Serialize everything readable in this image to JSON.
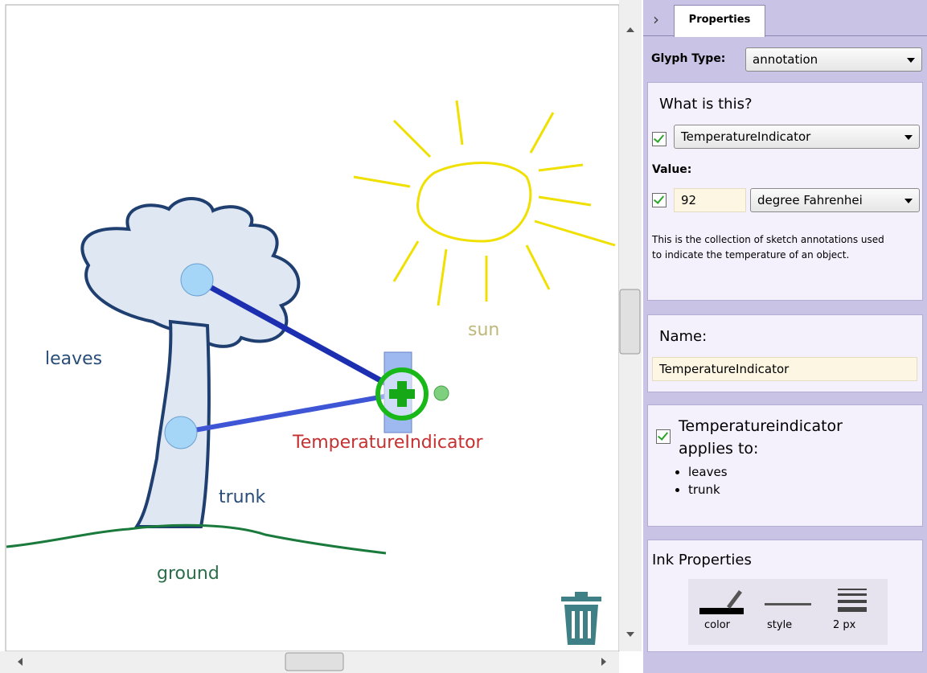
{
  "canvas": {
    "labels": {
      "leaves": "leaves",
      "trunk": "trunk",
      "sun": "sun",
      "ground": "ground",
      "indicator": "TemperatureIndicator"
    }
  },
  "panel": {
    "tab": "Properties",
    "glyph_type_label": "Glyph Type:",
    "glyph_type": "annotation",
    "what": {
      "title": "What is this?",
      "type": "TemperatureIndicator",
      "value_label": "Value:",
      "value": 92,
      "unit": "degree Fahrenhei",
      "description": "This is the collection of sketch annotations used to indicate the temperature of an object."
    },
    "name": {
      "title": "Name:",
      "value": "TemperatureIndicator"
    },
    "applies": {
      "title": "Temperatureindicator applies to:",
      "items": [
        "leaves",
        "trunk"
      ]
    },
    "ink": {
      "title": "Ink Properties",
      "tools": [
        "color",
        "style",
        "2 px"
      ]
    }
  }
}
